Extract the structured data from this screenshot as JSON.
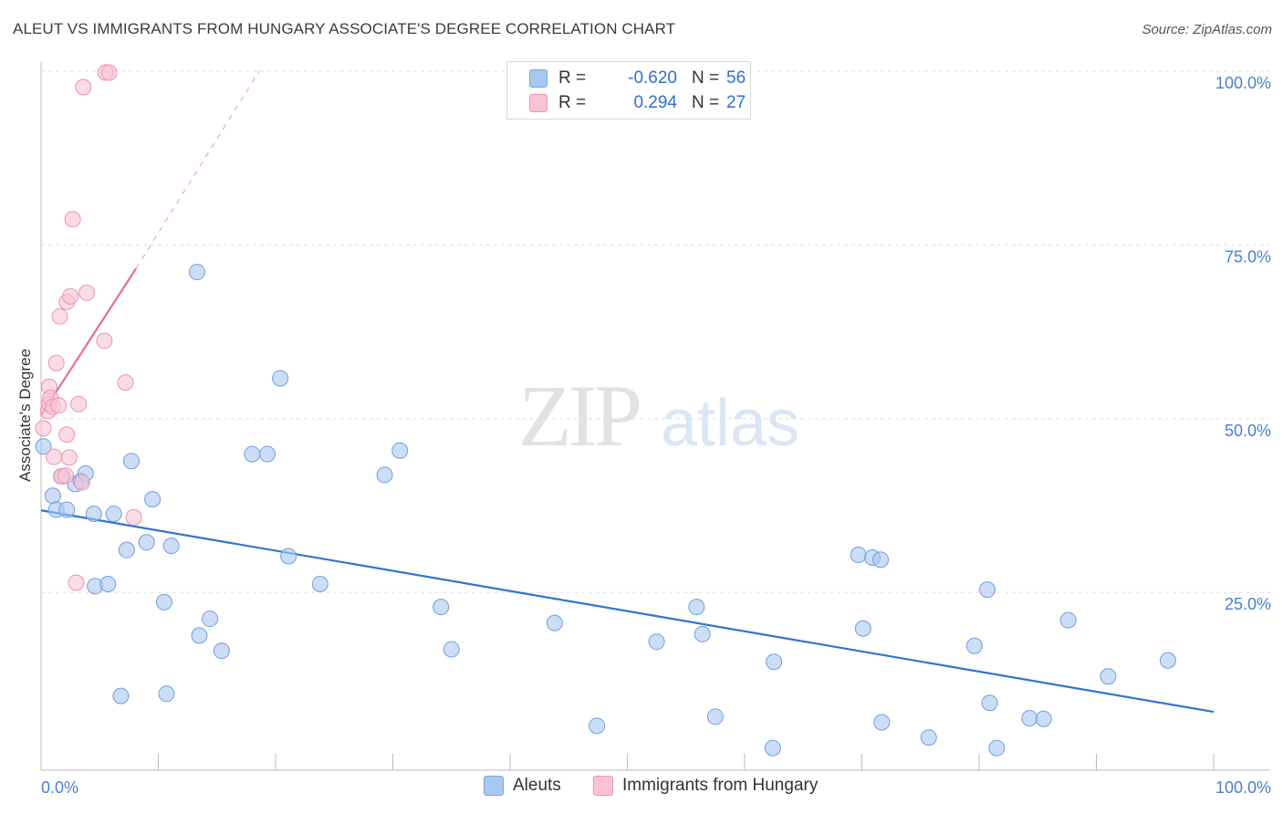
{
  "title": "ALEUT VS IMMIGRANTS FROM HUNGARY ASSOCIATE'S DEGREE CORRELATION CHART",
  "source": "Source: ZipAtlas.com",
  "watermark": {
    "zip": "ZIP",
    "atlas": "atlas"
  },
  "legend_top": [
    {
      "r_label": "R =",
      "r_value": "-0.620",
      "n_label": "N =",
      "n_value": "56",
      "color": "#a9c8f0",
      "border": "#7aa6e0"
    },
    {
      "r_label": "R =",
      "r_value": "0.294",
      "n_label": "N =",
      "n_value": "27",
      "color": "#f9c3d3",
      "border": "#ee93ae"
    }
  ],
  "legend_bottom": [
    {
      "label": "Aleuts",
      "color": "#a9c8f0",
      "border": "#7aa6e0"
    },
    {
      "label": "Immigrants from Hungary",
      "color": "#f9c3d3",
      "border": "#ee93ae"
    }
  ],
  "chart_data": {
    "type": "scatter",
    "title": "ALEUT VS IMMIGRANTS FROM HUNGARY ASSOCIATE'S DEGREE CORRELATION CHART",
    "xlabel": "",
    "ylabel": "Associate's Degree",
    "xlim": [
      0,
      100
    ],
    "ylim": [
      0,
      100
    ],
    "x_tick_labels": [
      "0.0%",
      "100.0%"
    ],
    "y_tick_labels": [
      {
        "value": 25,
        "label": "25.0%"
      },
      {
        "value": 50,
        "label": "50.0%"
      },
      {
        "value": 75,
        "label": "75.0%"
      },
      {
        "value": 100,
        "label": "100.0%"
      }
    ],
    "series": [
      {
        "name": "Aleuts",
        "color": "#a9c8f0",
        "stroke": "#6f9fde",
        "trend": {
          "x1": 0,
          "y1": 36.8,
          "x2": 100,
          "y2": 7.8,
          "color": "#2f74d0"
        },
        "points": [
          {
            "x": 0.2,
            "y": 46.0
          },
          {
            "x": 1.0,
            "y": 38.9
          },
          {
            "x": 1.3,
            "y": 36.9
          },
          {
            "x": 2.2,
            "y": 36.9
          },
          {
            "x": 1.8,
            "y": 41.7
          },
          {
            "x": 2.9,
            "y": 40.6
          },
          {
            "x": 3.4,
            "y": 41.0
          },
          {
            "x": 3.8,
            "y": 42.1
          },
          {
            "x": 4.5,
            "y": 36.3
          },
          {
            "x": 6.2,
            "y": 36.3
          },
          {
            "x": 7.7,
            "y": 43.9
          },
          {
            "x": 13.3,
            "y": 71.1
          },
          {
            "x": 18.0,
            "y": 44.9
          },
          {
            "x": 19.3,
            "y": 44.9
          },
          {
            "x": 20.4,
            "y": 55.8
          },
          {
            "x": 9.5,
            "y": 38.4
          },
          {
            "x": 7.3,
            "y": 31.1
          },
          {
            "x": 9.0,
            "y": 32.2
          },
          {
            "x": 11.1,
            "y": 31.7
          },
          {
            "x": 21.1,
            "y": 30.2
          },
          {
            "x": 4.6,
            "y": 25.9
          },
          {
            "x": 5.7,
            "y": 26.2
          },
          {
            "x": 10.5,
            "y": 23.6
          },
          {
            "x": 14.4,
            "y": 21.2
          },
          {
            "x": 13.5,
            "y": 18.8
          },
          {
            "x": 15.4,
            "y": 16.6
          },
          {
            "x": 6.8,
            "y": 10.1
          },
          {
            "x": 10.7,
            "y": 10.4
          },
          {
            "x": 23.8,
            "y": 26.2
          },
          {
            "x": 29.3,
            "y": 41.9
          },
          {
            "x": 30.6,
            "y": 45.4
          },
          {
            "x": 34.1,
            "y": 22.9
          },
          {
            "x": 35.0,
            "y": 16.8
          },
          {
            "x": 43.8,
            "y": 20.6
          },
          {
            "x": 47.4,
            "y": 5.8
          },
          {
            "x": 52.5,
            "y": 17.9
          },
          {
            "x": 55.9,
            "y": 22.9
          },
          {
            "x": 56.4,
            "y": 19.0
          },
          {
            "x": 57.5,
            "y": 7.1
          },
          {
            "x": 62.5,
            "y": 15.0
          },
          {
            "x": 62.4,
            "y": 2.6
          },
          {
            "x": 70.1,
            "y": 19.8
          },
          {
            "x": 69.7,
            "y": 30.4
          },
          {
            "x": 70.9,
            "y": 30.0
          },
          {
            "x": 71.6,
            "y": 29.7
          },
          {
            "x": 71.7,
            "y": 6.3
          },
          {
            "x": 75.7,
            "y": 4.1
          },
          {
            "x": 79.6,
            "y": 17.3
          },
          {
            "x": 80.7,
            "y": 25.4
          },
          {
            "x": 80.9,
            "y": 9.1
          },
          {
            "x": 81.5,
            "y": 2.6
          },
          {
            "x": 84.3,
            "y": 6.9
          },
          {
            "x": 85.5,
            "y": 6.8
          },
          {
            "x": 87.6,
            "y": 21.0
          },
          {
            "x": 91.0,
            "y": 12.9
          },
          {
            "x": 96.1,
            "y": 15.2
          }
        ]
      },
      {
        "name": "Immigrants from Hungary",
        "color": "#f9c3d3",
        "stroke": "#ee93ae",
        "trend": {
          "x1": 0,
          "y1": 50.5,
          "x2": 8.1,
          "y2": 71.6,
          "x3": 18.6,
          "y3": 100.0,
          "color": "#e4708f"
        },
        "points": [
          {
            "x": 0.2,
            "y": 48.6
          },
          {
            "x": 0.6,
            "y": 51.1
          },
          {
            "x": 0.7,
            "y": 54.6
          },
          {
            "x": 0.7,
            "y": 52.1
          },
          {
            "x": 0.8,
            "y": 53.0
          },
          {
            "x": 1.0,
            "y": 51.7
          },
          {
            "x": 1.1,
            "y": 44.5
          },
          {
            "x": 1.3,
            "y": 58.0
          },
          {
            "x": 1.5,
            "y": 51.9
          },
          {
            "x": 1.6,
            "y": 64.7
          },
          {
            "x": 1.7,
            "y": 41.7
          },
          {
            "x": 2.1,
            "y": 41.8
          },
          {
            "x": 2.2,
            "y": 47.7
          },
          {
            "x": 2.2,
            "y": 66.8
          },
          {
            "x": 2.4,
            "y": 44.4
          },
          {
            "x": 2.5,
            "y": 67.6
          },
          {
            "x": 2.7,
            "y": 78.7
          },
          {
            "x": 3.0,
            "y": 26.4
          },
          {
            "x": 3.2,
            "y": 52.1
          },
          {
            "x": 3.5,
            "y": 40.8
          },
          {
            "x": 3.6,
            "y": 97.7
          },
          {
            "x": 3.9,
            "y": 68.1
          },
          {
            "x": 5.4,
            "y": 61.2
          },
          {
            "x": 5.5,
            "y": 99.8
          },
          {
            "x": 5.8,
            "y": 99.8
          },
          {
            "x": 7.2,
            "y": 55.2
          },
          {
            "x": 7.9,
            "y": 35.8
          }
        ]
      }
    ]
  }
}
